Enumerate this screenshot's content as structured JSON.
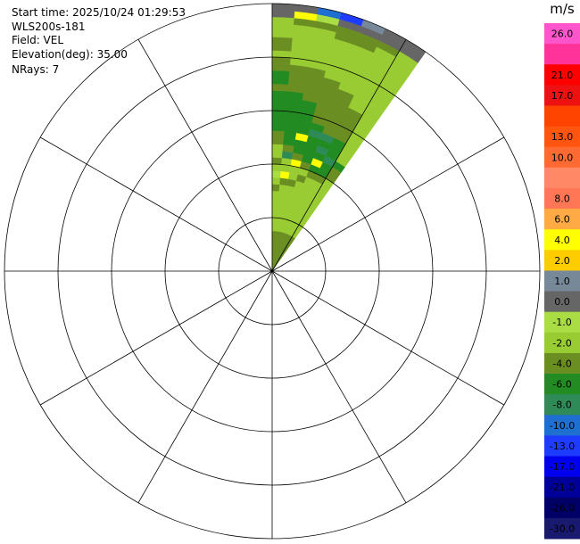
{
  "info": {
    "start_time": "Start time: 2025/10/24 01:29:53",
    "station": "WLS200s-181",
    "field": "Field: VEL",
    "elevation": "Elevation(deg): 35.00",
    "nrays": "NRays: 7"
  },
  "colorbar": {
    "unit": "m/s",
    "entries": [
      {
        "label": "26.0",
        "color": "#ff55cc"
      },
      {
        "label": "",
        "color": "#ff3399"
      },
      {
        "label": "21.0",
        "color": "#ff0000"
      },
      {
        "label": "17.0",
        "color": "#ee1111"
      },
      {
        "label": "",
        "color": "#ff4400"
      },
      {
        "label": "13.0",
        "color": "#ff5511"
      },
      {
        "label": "10.0",
        "color": "#ff6a33"
      },
      {
        "label": "",
        "color": "#ff8866"
      },
      {
        "label": "8.0",
        "color": "#ff7755"
      },
      {
        "label": "6.0",
        "color": "#ffaa44"
      },
      {
        "label": "4.0",
        "color": "#ffff00"
      },
      {
        "label": "2.0",
        "color": "#ffcc00"
      },
      {
        "label": "1.0",
        "color": "#778899"
      },
      {
        "label": "0.0",
        "color": "#666666"
      },
      {
        "label": "-1.0",
        "color": "#aadd44"
      },
      {
        "label": "-2.0",
        "color": "#99cc33"
      },
      {
        "label": "-4.0",
        "color": "#6b8e23"
      },
      {
        "label": "-6.0",
        "color": "#228b22"
      },
      {
        "label": "-8.0",
        "color": "#2e8b57"
      },
      {
        "label": "-10.0",
        "color": "#1e6fd0"
      },
      {
        "label": "-13.0",
        "color": "#1e3cff"
      },
      {
        "label": "-17.0",
        "color": "#0000ee"
      },
      {
        "label": "-21.0",
        "color": "#000099"
      },
      {
        "label": "-26.0",
        "color": "#000066"
      },
      {
        "label": "-30.0",
        "color": "#191970"
      }
    ]
  },
  "chart_data": {
    "type": "heatmap",
    "projection": "polar-ppi",
    "field": "VEL",
    "unit": "m/s",
    "range_rings_count": 5,
    "azimuth_spokes_deg": [
      0,
      30,
      60,
      90,
      120,
      150,
      180,
      210,
      240,
      270,
      300,
      330
    ],
    "rays_azimuth_deg": [
      0,
      5,
      10,
      15,
      20,
      25,
      30
    ],
    "gates_per_ray": 40,
    "velocity_gates_mps": [
      [
        -4,
        -4,
        -4,
        -4,
        -4,
        -4,
        -2,
        -2,
        -2,
        -2,
        -2,
        -2,
        -4,
        -2,
        -1,
        -2,
        -4,
        -2,
        -2,
        -4,
        -4,
        -6,
        -6,
        -6,
        -6,
        -6,
        -6,
        -4,
        -6,
        -6,
        -4,
        -4,
        -2,
        -4,
        -4,
        -2,
        -2,
        -2,
        0,
        0
      ],
      [
        -4,
        -4,
        -4,
        -4,
        -4,
        -4,
        -2,
        -2,
        -2,
        -2,
        -2,
        -2,
        -2,
        -4,
        4,
        -2,
        -2,
        -8,
        -4,
        -6,
        -6,
        -6,
        -6,
        -6,
        -6,
        -6,
        -6,
        -4,
        -4,
        -4,
        -4,
        -2,
        -2,
        -2,
        -2,
        -2,
        -2,
        -4,
        4,
        0
      ],
      [
        -4,
        -4,
        -4,
        -4,
        -4,
        -4,
        -2,
        -2,
        -2,
        -2,
        -2,
        -2,
        -2,
        -4,
        -2,
        -2,
        4,
        -4,
        -6,
        -6,
        4,
        -6,
        -6,
        -6,
        -6,
        -6,
        -4,
        -4,
        -4,
        -4,
        -4,
        -2,
        -2,
        -2,
        -2,
        -2,
        -2,
        -4,
        -1,
        -10
      ],
      [
        -4,
        -4,
        -4,
        -4,
        -4,
        -4,
        -2,
        -2,
        -2,
        -2,
        -2,
        -2,
        -2,
        -2,
        -4,
        -2,
        -4,
        -6,
        -6,
        -6,
        -6,
        -8,
        -6,
        -4,
        -4,
        -4,
        -4,
        -4,
        -4,
        -4,
        -2,
        -2,
        -2,
        -2,
        -2,
        -2,
        -4,
        -4,
        0,
        -13
      ],
      [
        -4,
        -4,
        -4,
        -4,
        -4,
        -4,
        -2,
        -2,
        -2,
        -2,
        -2,
        -2,
        -2,
        -2,
        -2,
        -4,
        -6,
        4,
        -6,
        -8,
        -6,
        -8,
        -4,
        -4,
        -4,
        -4,
        -4,
        -4,
        -4,
        -2,
        -2,
        -2,
        -2,
        -2,
        -2,
        -2,
        -4,
        -4,
        0,
        1
      ],
      [
        -4,
        -4,
        -4,
        -4,
        -4,
        -4,
        -2,
        -2,
        -2,
        -2,
        -2,
        -2,
        -2,
        -2,
        -2,
        -4,
        -6,
        -6,
        -8,
        -6,
        -6,
        -6,
        -4,
        -4,
        -4,
        -4,
        -4,
        -2,
        -2,
        -2,
        -2,
        -2,
        -2,
        -2,
        -2,
        -2,
        -2,
        -4,
        0,
        0
      ],
      [
        -4,
        -4,
        -4,
        -4,
        -4,
        -4,
        -2,
        -2,
        -2,
        -2,
        -2,
        -2,
        -2,
        -2,
        -2,
        -2,
        -4,
        -4,
        -6,
        -2,
        -2,
        -2,
        -2,
        -2,
        -2,
        -2,
        -2,
        -2,
        -2,
        -2,
        -2,
        -2,
        -2,
        -2,
        -2,
        -2,
        -2,
        -2,
        0,
        0
      ]
    ]
  }
}
